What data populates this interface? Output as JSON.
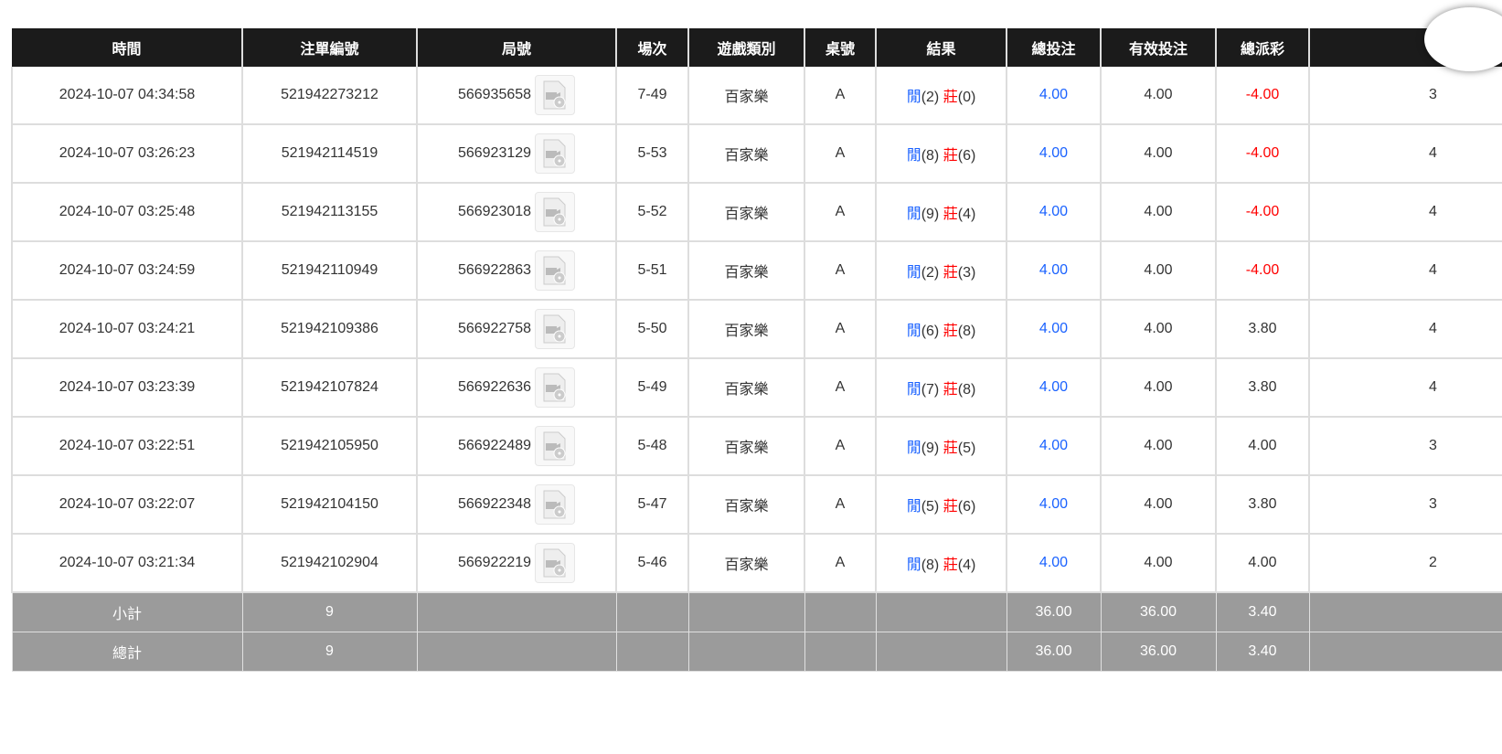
{
  "columns": [
    "時間",
    "注單編號",
    "局號",
    "場次",
    "遊戲類別",
    "桌號",
    "結果",
    "總投注",
    "有效投注",
    "總派彩",
    ""
  ],
  "rows": [
    {
      "time": "2024-10-07 04:34:58",
      "order": "521942273212",
      "round": "566935658",
      "session": "7-49",
      "game": "百家樂",
      "table": "A",
      "player": "閒",
      "player_pts": "(2)",
      "banker": "莊",
      "banker_pts": "(0)",
      "bet": "4.00",
      "valid": "4.00",
      "payout": "-4.00",
      "payout_neg": true,
      "last": "3"
    },
    {
      "time": "2024-10-07 03:26:23",
      "order": "521942114519",
      "round": "566923129",
      "session": "5-53",
      "game": "百家樂",
      "table": "A",
      "player": "閒",
      "player_pts": "(8)",
      "banker": "莊",
      "banker_pts": "(6)",
      "bet": "4.00",
      "valid": "4.00",
      "payout": "-4.00",
      "payout_neg": true,
      "last": "4"
    },
    {
      "time": "2024-10-07 03:25:48",
      "order": "521942113155",
      "round": "566923018",
      "session": "5-52",
      "game": "百家樂",
      "table": "A",
      "player": "閒",
      "player_pts": "(9)",
      "banker": "莊",
      "banker_pts": "(4)",
      "bet": "4.00",
      "valid": "4.00",
      "payout": "-4.00",
      "payout_neg": true,
      "last": "4"
    },
    {
      "time": "2024-10-07 03:24:59",
      "order": "521942110949",
      "round": "566922863",
      "session": "5-51",
      "game": "百家樂",
      "table": "A",
      "player": "閒",
      "player_pts": "(2)",
      "banker": "莊",
      "banker_pts": "(3)",
      "bet": "4.00",
      "valid": "4.00",
      "payout": "-4.00",
      "payout_neg": true,
      "last": "4"
    },
    {
      "time": "2024-10-07 03:24:21",
      "order": "521942109386",
      "round": "566922758",
      "session": "5-50",
      "game": "百家樂",
      "table": "A",
      "player": "閒",
      "player_pts": "(6)",
      "banker": "莊",
      "banker_pts": "(8)",
      "bet": "4.00",
      "valid": "4.00",
      "payout": "3.80",
      "payout_neg": false,
      "last": "4"
    },
    {
      "time": "2024-10-07 03:23:39",
      "order": "521942107824",
      "round": "566922636",
      "session": "5-49",
      "game": "百家樂",
      "table": "A",
      "player": "閒",
      "player_pts": "(7)",
      "banker": "莊",
      "banker_pts": "(8)",
      "bet": "4.00",
      "valid": "4.00",
      "payout": "3.80",
      "payout_neg": false,
      "last": "4"
    },
    {
      "time": "2024-10-07 03:22:51",
      "order": "521942105950",
      "round": "566922489",
      "session": "5-48",
      "game": "百家樂",
      "table": "A",
      "player": "閒",
      "player_pts": "(9)",
      "banker": "莊",
      "banker_pts": "(5)",
      "bet": "4.00",
      "valid": "4.00",
      "payout": "4.00",
      "payout_neg": false,
      "last": "3"
    },
    {
      "time": "2024-10-07 03:22:07",
      "order": "521942104150",
      "round": "566922348",
      "session": "5-47",
      "game": "百家樂",
      "table": "A",
      "player": "閒",
      "player_pts": "(5)",
      "banker": "莊",
      "banker_pts": "(6)",
      "bet": "4.00",
      "valid": "4.00",
      "payout": "3.80",
      "payout_neg": false,
      "last": "3"
    },
    {
      "time": "2024-10-07 03:21:34",
      "order": "521942102904",
      "round": "566922219",
      "session": "5-46",
      "game": "百家樂",
      "table": "A",
      "player": "閒",
      "player_pts": "(8)",
      "banker": "莊",
      "banker_pts": "(4)",
      "bet": "4.00",
      "valid": "4.00",
      "payout": "4.00",
      "payout_neg": false,
      "last": "2"
    }
  ],
  "subtotal": {
    "label": "小計",
    "count": "9",
    "bet": "36.00",
    "valid": "36.00",
    "payout": "3.40"
  },
  "total": {
    "label": "總計",
    "count": "9",
    "bet": "36.00",
    "valid": "36.00",
    "payout": "3.40"
  },
  "colors": {
    "header": "#1b1b1b",
    "blue": "#1a62ff",
    "red": "#ff0000",
    "summary": "#9b9b9b"
  },
  "icons": {
    "replay": "video-file-icon"
  }
}
